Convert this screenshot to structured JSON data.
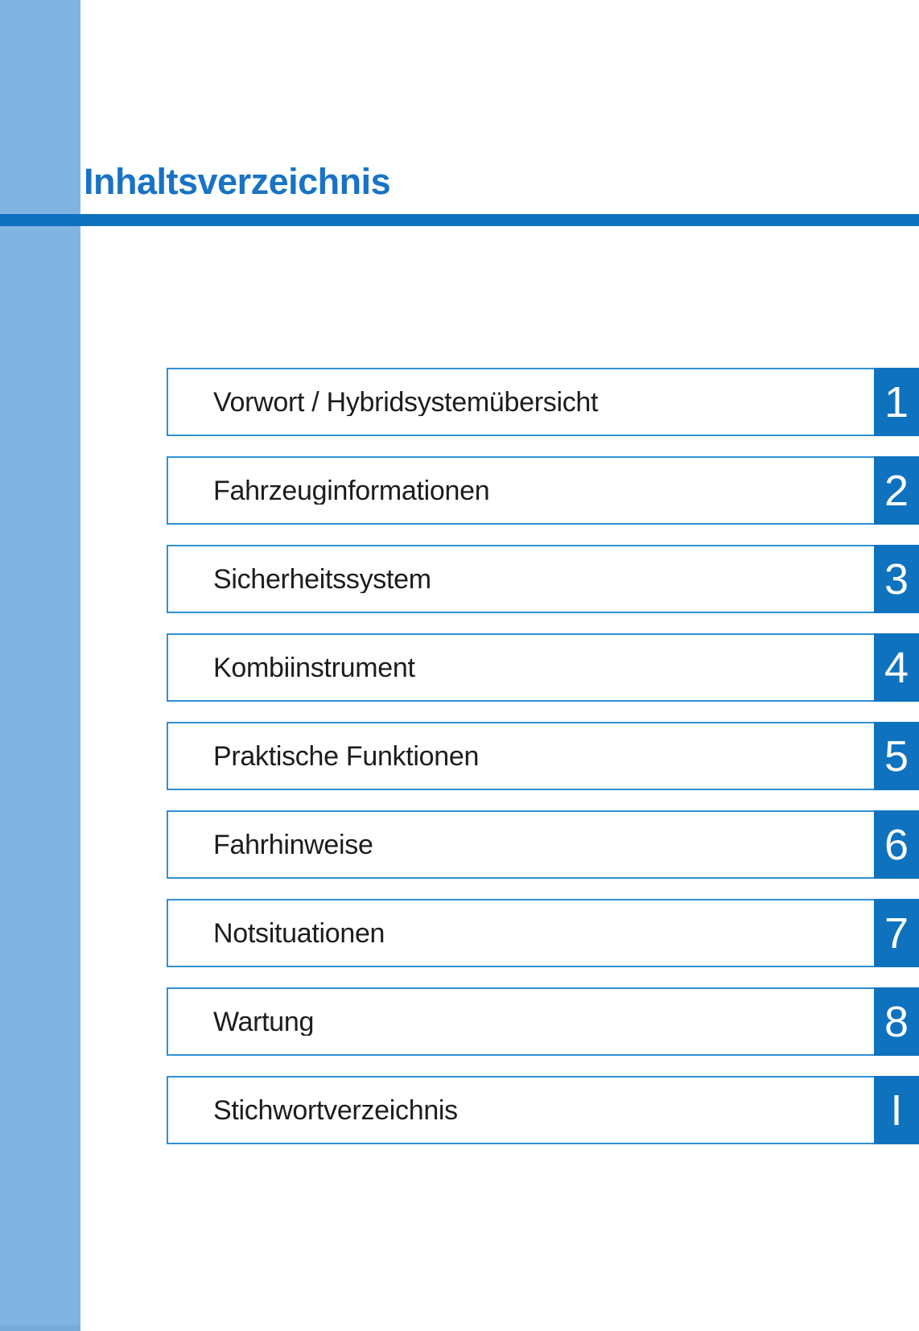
{
  "page": {
    "title": "Inhaltsverzeichnis"
  },
  "colors": {
    "accent": "#0e72bf",
    "accent_light": "#82b4e1",
    "border": "#2f90d6",
    "title": "#1973c5",
    "text": "#1c1c1e",
    "badge_text": "#ffffff"
  },
  "toc": {
    "items": [
      {
        "label": "Vorwort / Hybridsystemübersicht",
        "number": "1"
      },
      {
        "label": "Fahrzeuginformationen",
        "number": "2"
      },
      {
        "label": "Sicherheitssystem",
        "number": "3"
      },
      {
        "label": "Kombiinstrument",
        "number": "4"
      },
      {
        "label": "Praktische Funktionen",
        "number": "5"
      },
      {
        "label": "Fahrhinweise",
        "number": "6"
      },
      {
        "label": "Notsituationen",
        "number": "7"
      },
      {
        "label": "Wartung",
        "number": "8"
      },
      {
        "label": "Stichwortverzeichnis",
        "number": "I"
      }
    ]
  }
}
